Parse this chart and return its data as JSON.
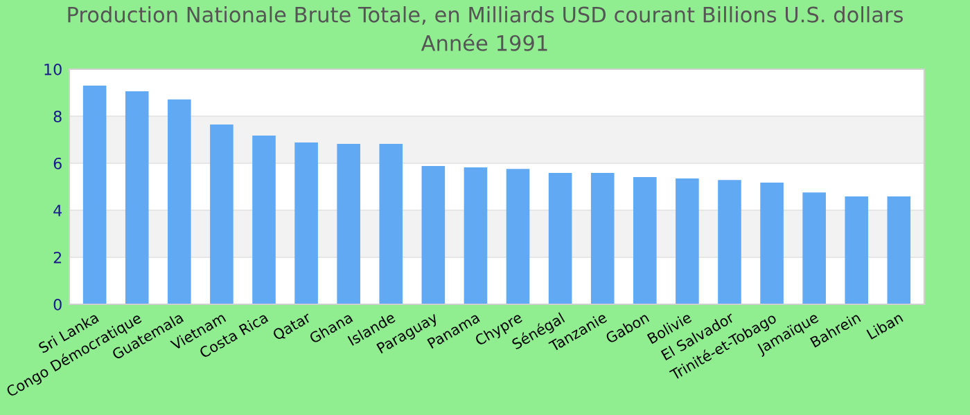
{
  "chart_data": {
    "type": "bar",
    "title": "Production Nationale Brute Totale, en Milliards USD courant Billions U.S. dollars\nAnnée 1991",
    "categories": [
      "Sri Lanka",
      "Congo Démocratique",
      "Guatemala",
      "Vietnam",
      "Costa Rica",
      "Qatar",
      "Ghana",
      "Islande",
      "Paraguay",
      "Panama",
      "Chypre",
      "Sénégal",
      "Tanzanie",
      "Gabon",
      "Bolivie",
      "El Salvador",
      "Trinité-et-Tobago",
      "Jamaïque",
      "Bahrein",
      "Liban"
    ],
    "values": [
      9.3,
      9.06,
      8.71,
      7.65,
      7.18,
      6.88,
      6.82,
      6.82,
      5.88,
      5.82,
      5.76,
      5.59,
      5.59,
      5.41,
      5.35,
      5.29,
      5.18,
      4.76,
      4.59,
      4.59
    ],
    "color": "#62a9f4",
    "ylim": [
      0,
      10
    ],
    "yticks": [
      0,
      2,
      4,
      6,
      8,
      10
    ],
    "grid": "y"
  }
}
